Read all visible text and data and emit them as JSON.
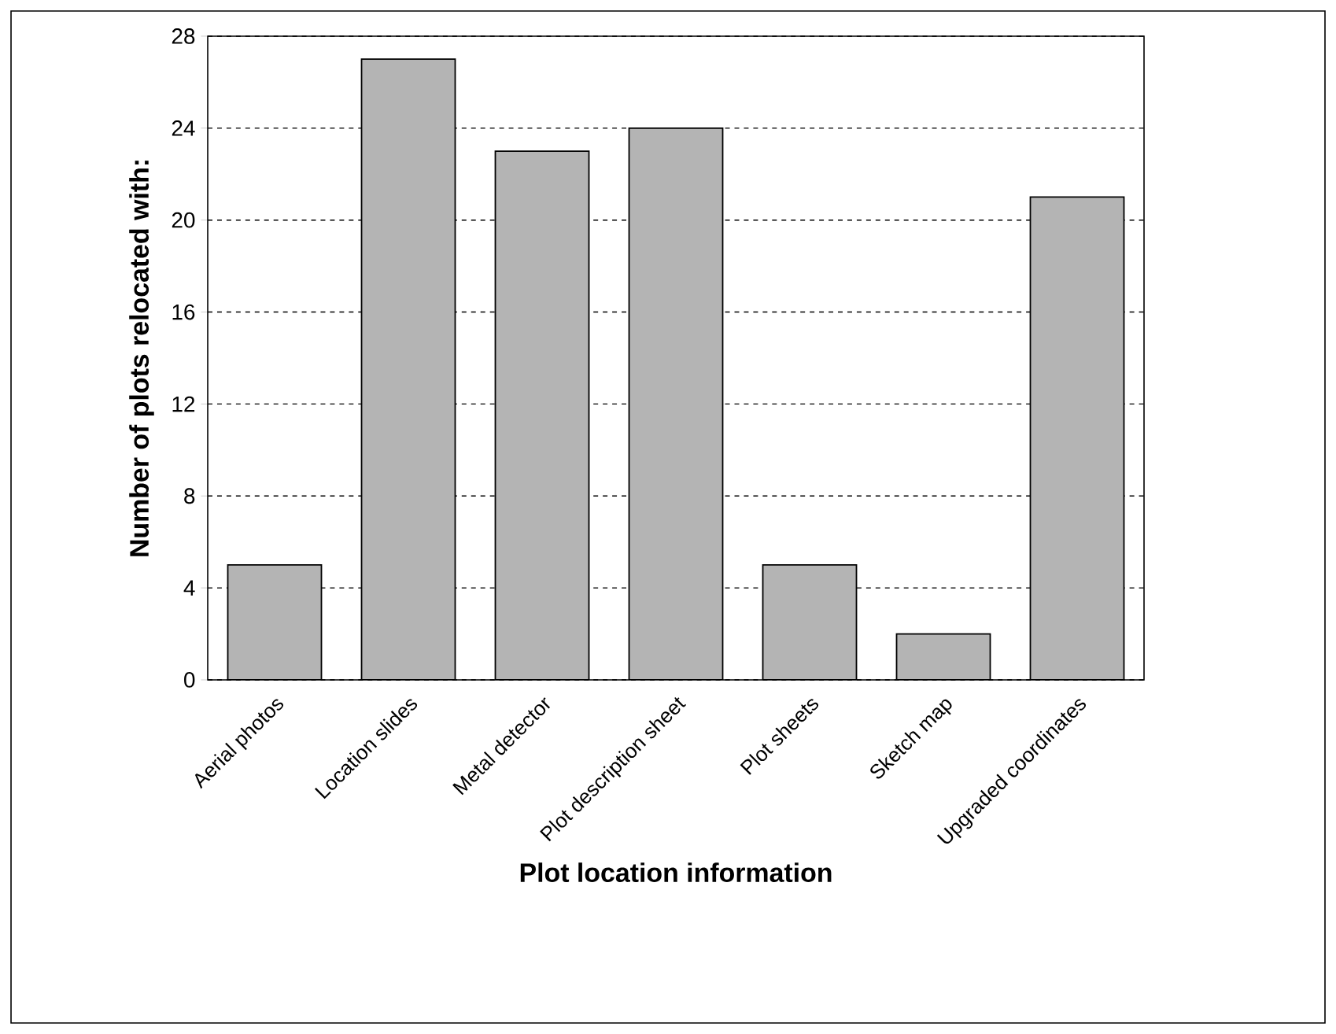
{
  "chart_data": {
    "type": "bar",
    "xlabel": "Plot location information",
    "ylabel": "Number of plots relocated with:",
    "categories": [
      "Aerial photos",
      "Location slides",
      "Metal detector",
      "Plot description sheet",
      "Plot sheets",
      "Sketch map",
      "Upgraded coordinates"
    ],
    "values": [
      5,
      27,
      23,
      24,
      5,
      2,
      21
    ],
    "color": "#b4b4b4",
    "ylim": [
      0,
      28
    ],
    "yticks": [
      0,
      4,
      8,
      12,
      16,
      20,
      24,
      28
    ],
    "grid": "y"
  }
}
